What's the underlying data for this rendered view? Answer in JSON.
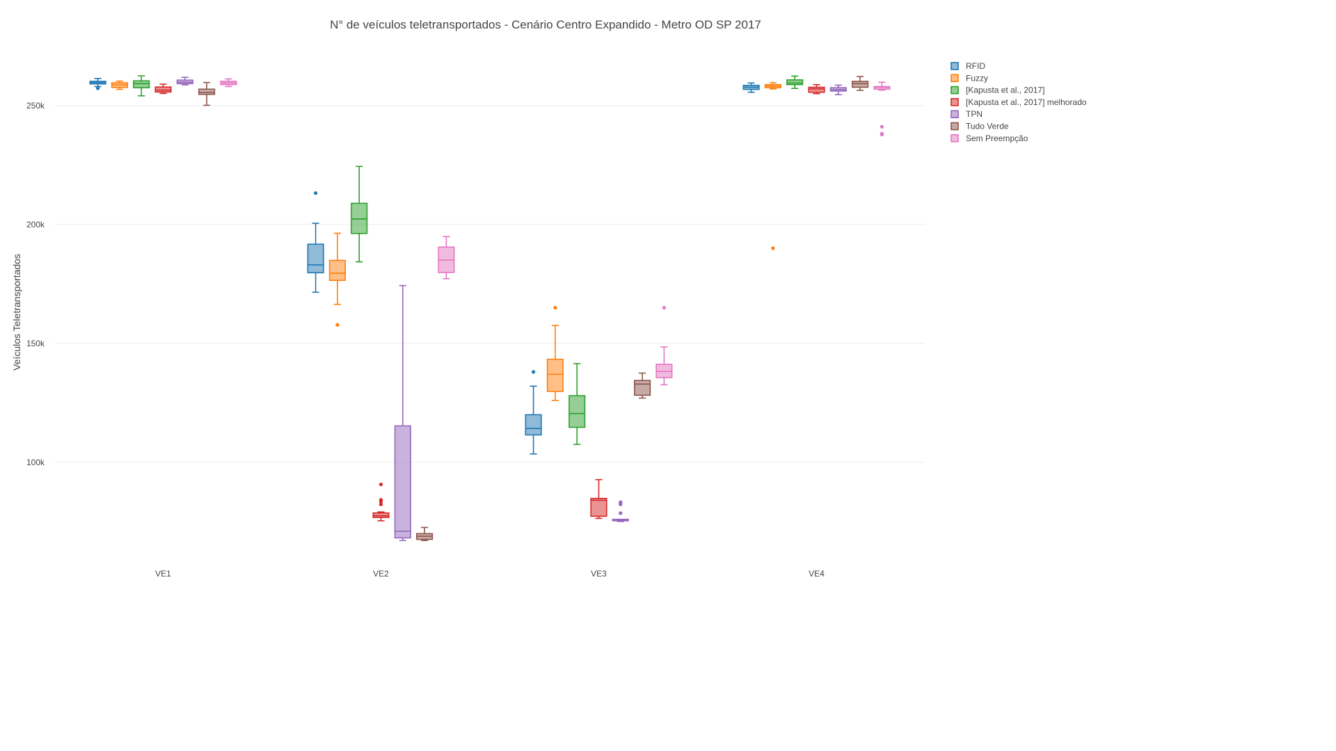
{
  "chart_data": {
    "type": "box",
    "title": "N° de veículos teletransportados - Cenário Centro Expandido - Metro OD SP 2017",
    "ylabel": "Veículos Teletransportados",
    "xlabel": "",
    "categories": [
      "VE1",
      "VE2",
      "VE3",
      "VE4"
    ],
    "ylim": [
      59000,
      271000
    ],
    "yticks": [
      {
        "value": 100000,
        "label": "100k"
      },
      {
        "value": 150000,
        "label": "150k"
      },
      {
        "value": 200000,
        "label": "200k"
      },
      {
        "value": 250000,
        "label": "250k"
      }
    ],
    "grid": true,
    "legend_position": "top-right",
    "series": [
      {
        "name": "RFID",
        "color": "#1f77b4",
        "boxes": [
          {
            "min": 258000,
            "q1": 259100,
            "median": 259700,
            "q3": 260200,
            "max": 261400,
            "outliers": [
              257300
            ]
          },
          {
            "min": 171500,
            "q1": 179700,
            "median": 183000,
            "q3": 191700,
            "max": 200500,
            "outliers": [
              213200
            ]
          },
          {
            "min": 103500,
            "q1": 111500,
            "median": 114200,
            "q3": 120000,
            "max": 132000,
            "outliers": [
              138000
            ]
          },
          {
            "min": 255600,
            "q1": 256800,
            "median": 257700,
            "q3": 258500,
            "max": 259500,
            "outliers": []
          }
        ]
      },
      {
        "name": "Fuzzy",
        "color": "#ff7f0e",
        "boxes": [
          {
            "min": 256800,
            "q1": 257600,
            "median": 258700,
            "q3": 259600,
            "max": 260300,
            "outliers": []
          },
          {
            "min": 166400,
            "q1": 176500,
            "median": 179500,
            "q3": 184900,
            "max": 196300,
            "outliers": [
              157800
            ]
          },
          {
            "min": 126000,
            "q1": 129800,
            "median": 137000,
            "q3": 143300,
            "max": 157500,
            "outliers": [
              165000
            ]
          },
          {
            "min": 257000,
            "q1": 257500,
            "median": 258200,
            "q3": 258800,
            "max": 259600,
            "outliers": [
              190000
            ]
          }
        ]
      },
      {
        "name": "[Kapusta et al., 2017]",
        "color": "#2ca02c",
        "boxes": [
          {
            "min": 254100,
            "q1": 257500,
            "median": 259200,
            "q3": 260400,
            "max": 262500,
            "outliers": []
          },
          {
            "min": 184300,
            "q1": 196200,
            "median": 202300,
            "q3": 208900,
            "max": 224400,
            "outliers": []
          },
          {
            "min": 107500,
            "q1": 114700,
            "median": 120500,
            "q3": 128000,
            "max": 141500,
            "outliers": []
          },
          {
            "min": 257200,
            "q1": 258800,
            "median": 259500,
            "q3": 260800,
            "max": 262400,
            "outliers": []
          }
        ]
      },
      {
        "name": "[Kapusta et al., 2017] melhorado",
        "color": "#d62728",
        "boxes": [
          {
            "min": 255100,
            "q1": 255700,
            "median": 256500,
            "q3": 257800,
            "max": 259000,
            "outliers": []
          },
          {
            "min": 75400,
            "q1": 76800,
            "median": 77500,
            "q3": 78700,
            "max": 79100,
            "outliers": [
              82300,
              83400,
              84200,
              90700
            ]
          },
          {
            "min": 76400,
            "q1": 77300,
            "median": 84000,
            "q3": 84800,
            "max": 92700,
            "outliers": []
          },
          {
            "min": 255000,
            "q1": 255600,
            "median": 257000,
            "q3": 257700,
            "max": 258800,
            "outliers": []
          }
        ]
      },
      {
        "name": "TPN",
        "color": "#9467bd",
        "boxes": [
          {
            "min": 258700,
            "q1": 259200,
            "median": 259800,
            "q3": 260700,
            "max": 261900,
            "outliers": []
          },
          {
            "min": 67100,
            "q1": 68200,
            "median": 71000,
            "q3": 115300,
            "max": 174300,
            "outliers": []
          },
          {
            "min": 75100,
            "q1": 75400,
            "median": 75600,
            "q3": 76000,
            "max": 76000,
            "outliers": [
              78600,
              82300,
              82800,
              83200
            ]
          },
          {
            "min": 254600,
            "q1": 256100,
            "median": 256700,
            "q3": 257500,
            "max": 258600,
            "outliers": []
          }
        ]
      },
      {
        "name": "Tudo Verde",
        "color": "#8c564b",
        "boxes": [
          {
            "min": 250100,
            "q1": 254700,
            "median": 255500,
            "q3": 256900,
            "max": 259700,
            "outliers": []
          },
          {
            "min": 67100,
            "q1": 67600,
            "median": 68900,
            "q3": 70000,
            "max": 72600,
            "outliers": []
          },
          {
            "min": 127000,
            "q1": 128200,
            "median": 132900,
            "q3": 134400,
            "max": 137500,
            "outliers": []
          },
          {
            "min": 256400,
            "q1": 257700,
            "median": 259200,
            "q3": 260200,
            "max": 262200,
            "outliers": []
          }
        ]
      },
      {
        "name": "Sem Preempção",
        "color": "#e377c2",
        "boxes": [
          {
            "min": 258000,
            "q1": 258800,
            "median": 259500,
            "q3": 260200,
            "max": 261200,
            "outliers": []
          },
          {
            "min": 177200,
            "q1": 179800,
            "median": 185000,
            "q3": 190500,
            "max": 194900,
            "outliers": []
          },
          {
            "min": 132600,
            "q1": 135600,
            "median": 138200,
            "q3": 141200,
            "max": 148500,
            "outliers": [
              165000
            ]
          },
          {
            "min": 256500,
            "q1": 256900,
            "median": 257700,
            "q3": 258000,
            "max": 259800,
            "outliers": [
              237800,
              238200,
              241100
            ]
          }
        ]
      }
    ]
  }
}
